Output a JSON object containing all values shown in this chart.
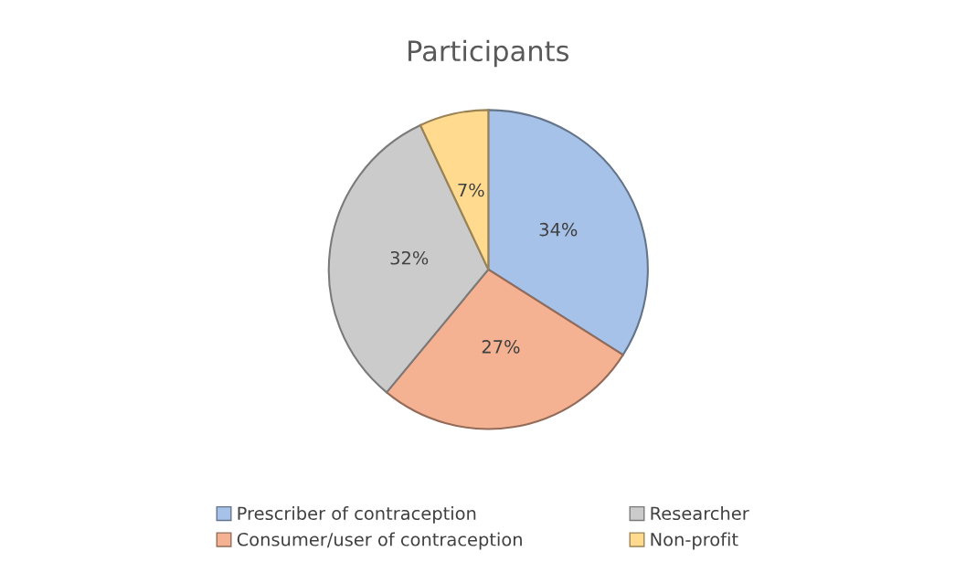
{
  "chart_data": {
    "type": "pie",
    "title": "Participants",
    "categories": [
      "Prescriber of contraception",
      "Consumer/user of contraception",
      "Researcher",
      "Non-profit"
    ],
    "values": [
      34,
      27,
      32,
      7
    ],
    "colors": [
      "#a6c2e8",
      "#f5b293",
      "#cbcbcb",
      "#ffda8f"
    ],
    "value_labels": [
      "34%",
      "27%",
      "32%",
      "7%"
    ],
    "legend": "bottom"
  }
}
